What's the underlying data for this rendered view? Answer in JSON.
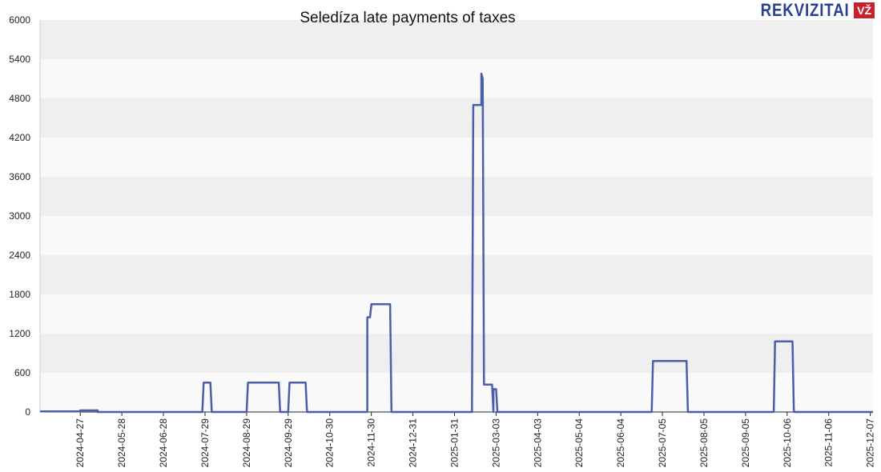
{
  "chart_data": {
    "type": "line",
    "title": "Seledíza late payments of taxes",
    "xlabel": "",
    "ylabel": "",
    "ylim": [
      0,
      6000
    ],
    "yticks": [
      0,
      600,
      1200,
      1800,
      2400,
      3000,
      3600,
      4200,
      4800,
      5400,
      6000
    ],
    "xticks": [
      "2024-04-27",
      "2024-05-28",
      "2024-06-28",
      "2024-07-29",
      "2024-08-29",
      "2024-09-29",
      "2024-10-30",
      "2024-11-30",
      "2024-12-31",
      "2025-01-31",
      "2025-03-03",
      "2025-04-03",
      "2025-05-04",
      "2025-06-04",
      "2025-07-05",
      "2025-08-05",
      "2025-09-05",
      "2025-10-06",
      "2025-11-06",
      "2025-12-07"
    ],
    "xrange": [
      "2024-03-28",
      "2025-12-09"
    ],
    "grid": "horizontal bands",
    "line_color": "#4a5eab",
    "series": [
      {
        "name": "late payments",
        "points": [
          [
            "2024-03-28",
            10
          ],
          [
            "2024-04-27",
            10
          ],
          [
            "2024-04-27",
            25
          ],
          [
            "2024-05-10",
            25
          ],
          [
            "2024-05-10",
            0
          ],
          [
            "2024-07-27",
            0
          ],
          [
            "2024-07-28",
            450
          ],
          [
            "2024-08-02",
            450
          ],
          [
            "2024-08-03",
            0
          ],
          [
            "2024-08-29",
            0
          ],
          [
            "2024-08-30",
            450
          ],
          [
            "2024-09-22",
            450
          ],
          [
            "2024-09-23",
            0
          ],
          [
            "2024-09-29",
            0
          ],
          [
            "2024-09-30",
            450
          ],
          [
            "2024-10-12",
            450
          ],
          [
            "2024-10-13",
            0
          ],
          [
            "2024-11-27",
            0
          ],
          [
            "2024-11-27",
            1450
          ],
          [
            "2024-11-29",
            1450
          ],
          [
            "2024-11-30",
            1650
          ],
          [
            "2024-12-14",
            1650
          ],
          [
            "2024-12-15",
            0
          ],
          [
            "2025-02-13",
            0
          ],
          [
            "2025-02-14",
            4700
          ],
          [
            "2025-02-20",
            4700
          ],
          [
            "2025-02-20",
            5180
          ],
          [
            "2025-02-21",
            5100
          ],
          [
            "2025-02-22",
            420
          ],
          [
            "2025-02-28",
            420
          ],
          [
            "2025-03-01",
            0
          ],
          [
            "2025-03-01",
            350
          ],
          [
            "2025-03-03",
            350
          ],
          [
            "2025-03-04",
            0
          ],
          [
            "2025-06-27",
            0
          ],
          [
            "2025-06-28",
            780
          ],
          [
            "2025-07-23",
            780
          ],
          [
            "2025-07-24",
            0
          ],
          [
            "2025-09-26",
            0
          ],
          [
            "2025-09-27",
            1080
          ],
          [
            "2025-10-10",
            1080
          ],
          [
            "2025-10-11",
            0
          ],
          [
            "2025-12-09",
            0
          ]
        ]
      }
    ]
  },
  "logo": {
    "text": "REKVIZITAI",
    "badge": "VŽ"
  }
}
